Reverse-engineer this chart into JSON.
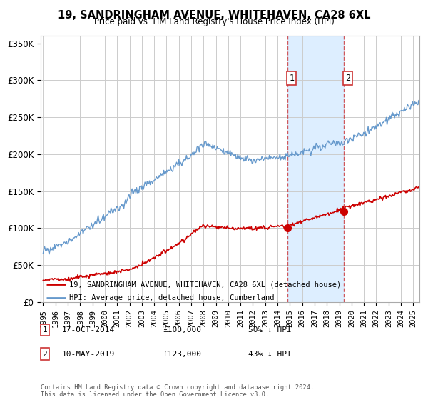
{
  "title": "19, SANDRINGHAM AVENUE, WHITEHAVEN, CA28 6XL",
  "subtitle": "Price paid vs. HM Land Registry's House Price Index (HPI)",
  "ylabel_ticks": [
    "£0",
    "£50K",
    "£100K",
    "£150K",
    "£200K",
    "£250K",
    "£300K",
    "£350K"
  ],
  "ylim": [
    0,
    360000
  ],
  "xlim_start": 1994.8,
  "xlim_end": 2025.5,
  "transaction1": {
    "date_num": 2014.79,
    "price": 100000,
    "label": "1",
    "date_str": "17-OCT-2014",
    "price_str": "£100,000",
    "pct": "50% ↓ HPI"
  },
  "transaction2": {
    "date_num": 2019.36,
    "price": 123000,
    "label": "2",
    "date_str": "10-MAY-2019",
    "price_str": "£123,000",
    "pct": "43% ↓ HPI"
  },
  "legend_label_red": "19, SANDRINGHAM AVENUE, WHITEHAVEN, CA28 6XL (detached house)",
  "legend_label_blue": "HPI: Average price, detached house, Cumberland",
  "footer": "Contains HM Land Registry data © Crown copyright and database right 2024.\nThis data is licensed under the Open Government Licence v3.0.",
  "red_color": "#cc0000",
  "blue_color": "#6699cc",
  "highlight_color": "#ddeeff",
  "dashed_color": "#cc3333",
  "grid_color": "#cccccc",
  "background_color": "#ffffff"
}
